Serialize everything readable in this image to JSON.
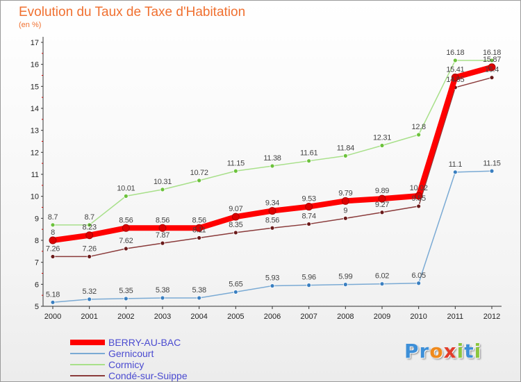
{
  "title": "Evolution du Taux de Taxe d'Habitation",
  "subtitle": "(en %)",
  "logo": {
    "text": "Proxiti",
    "letters": [
      {
        "ch": "P",
        "color": "#3d8fd8"
      },
      {
        "ch": "r",
        "color": "#3d8fd8"
      },
      {
        "ch": "o",
        "color": "#f08a1c"
      },
      {
        "ch": "x",
        "color": "#e23c2a"
      },
      {
        "ch": "i",
        "color": "#8cc63e"
      },
      {
        "ch": "t",
        "color": "#3d8fd8"
      },
      {
        "ch": "i",
        "color": "#8cc63e"
      }
    ]
  },
  "chart_data": {
    "type": "line",
    "title": "Evolution du Taux de Taxe d'Habitation",
    "ylabel": "(en %)",
    "x": [
      2000,
      2001,
      2002,
      2003,
      2004,
      2005,
      2006,
      2007,
      2008,
      2009,
      2010,
      2011,
      2012
    ],
    "ylim": [
      5,
      17
    ],
    "yticks": [
      5,
      6,
      7,
      8,
      9,
      10,
      11,
      12,
      13,
      14,
      15,
      16,
      17
    ],
    "grid": false,
    "legend_position": "bottom-left",
    "series": [
      {
        "name": "BERRY-AU-BAC",
        "color": "#ff0000",
        "marker": "#dd0000",
        "values": [
          8,
          8.23,
          8.56,
          8.56,
          8.56,
          9.07,
          9.34,
          9.53,
          9.79,
          9.89,
          10.02,
          15.41,
          15.87
        ],
        "labels": [
          "8",
          "8.23",
          "8.56",
          "8.56",
          "8.56",
          "9.07",
          "9.34",
          "9.53",
          "9.79",
          "9.89",
          "10.02",
          "15.41",
          "15.87"
        ]
      },
      {
        "name": "Gernicourt",
        "color": "#7aaad4",
        "marker": "#3a7fc0",
        "values": [
          5.18,
          5.32,
          5.35,
          5.38,
          5.38,
          5.65,
          5.93,
          5.96,
          5.99,
          6.02,
          6.05,
          11.1,
          11.15
        ],
        "labels": [
          "5.18",
          "5.32",
          "5.35",
          "5.38",
          "5.38",
          "5.65",
          "5.93",
          "5.96",
          "5.99",
          "6.02",
          "6.05",
          "11.1",
          "11.15"
        ]
      },
      {
        "name": "Cormicy",
        "color": "#a8e08a",
        "marker": "#6cc23c",
        "values": [
          8.7,
          8.7,
          10.01,
          10.31,
          10.72,
          11.15,
          11.38,
          11.61,
          11.84,
          12.31,
          12.8,
          16.18,
          16.18
        ],
        "labels": [
          "8.7",
          "8.7",
          "10.01",
          "10.31",
          "10.72",
          "11.15",
          "11.38",
          "11.61",
          "11.84",
          "12.31",
          "12.8",
          "16.18",
          "16.18"
        ]
      },
      {
        "name": "Condé-sur-Suippe",
        "color": "#8a3a3a",
        "marker": "#6a1a1a",
        "values": [
          7.26,
          7.26,
          7.62,
          7.87,
          8.11,
          8.35,
          8.56,
          8.74,
          9,
          9.27,
          9.55,
          14.95,
          15.4
        ],
        "labels": [
          "7.26",
          "7.26",
          "7.62",
          "7.87",
          "8.11",
          "8.35",
          "8.56",
          "8.74",
          "9",
          "9.27",
          "9.55",
          "14.95",
          "15.4"
        ]
      }
    ]
  }
}
